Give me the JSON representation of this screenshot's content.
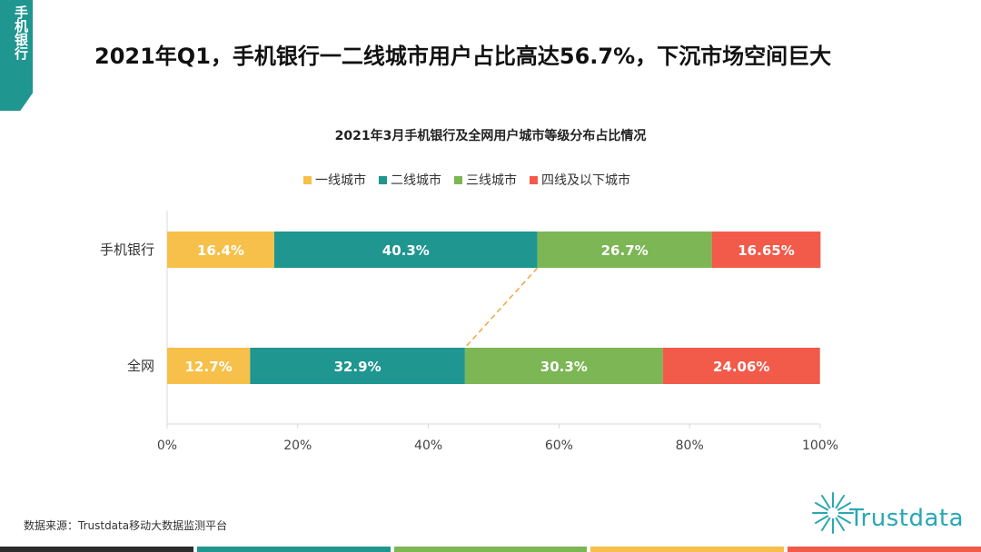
{
  "side_tab": {
    "label": "手机银行"
  },
  "page_title": "2021年Q1，手机银行一二线城市用户占比高达56.7%，下沉市场空间巨大",
  "source": "数据来源：Trustdata移动大数据监测平台",
  "logo": {
    "text": "Trustdata"
  },
  "colors": {
    "tier1": "#f7c04a",
    "tier2": "#1f9690",
    "tier3": "#7cb655",
    "tier4": "#f25a4a",
    "brand": "#1f9690",
    "strip": [
      "#2b2b2b",
      "#1f9690",
      "#7cb655",
      "#f7c04a",
      "#f25a4a"
    ]
  },
  "chart_data": {
    "type": "bar",
    "orientation": "horizontal",
    "stacked": true,
    "title": "2021年3月手机银行及全网用户城市等级分布占比情况",
    "categories": [
      "手机银行",
      "全网"
    ],
    "series": [
      {
        "name": "一线城市",
        "values": [
          16.4,
          12.7
        ],
        "labels": [
          "16.4%",
          "12.7%"
        ]
      },
      {
        "name": "二线城市",
        "values": [
          40.3,
          32.9
        ],
        "labels": [
          "40.3%",
          "32.9%"
        ]
      },
      {
        "name": "三线城市",
        "values": [
          26.7,
          30.3
        ],
        "labels": [
          "26.7%",
          "30.3%"
        ]
      },
      {
        "name": "四线及以下城市",
        "values": [
          16.65,
          24.06
        ],
        "labels": [
          "16.65%",
          "24.06%"
        ]
      }
    ],
    "xlim": [
      0,
      100
    ],
    "xticks": [
      "0%",
      "20%",
      "40%",
      "60%",
      "80%",
      "100%"
    ],
    "legend_position": "top",
    "annotation": "dashed connector between the end of the tier-2 segment of each bar"
  }
}
